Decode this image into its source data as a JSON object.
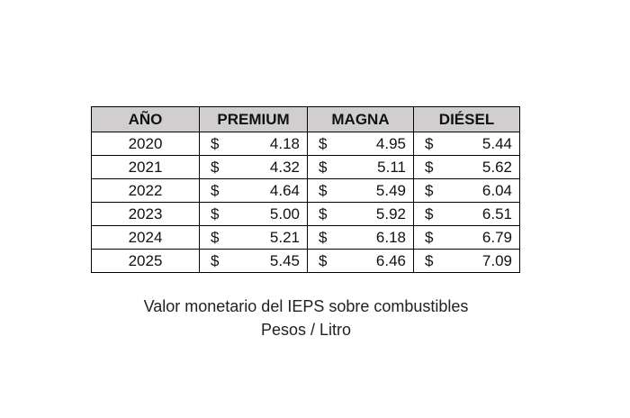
{
  "chart_data": {
    "type": "table",
    "columns": [
      "AÑO",
      "PREMIUM",
      "MAGNA",
      "DIÉSEL"
    ],
    "currency_symbol": "$",
    "rows": [
      {
        "year": "2020",
        "premium": "4.18",
        "magna": "4.95",
        "diesel": "5.44"
      },
      {
        "year": "2021",
        "premium": "4.32",
        "magna": "5.11",
        "diesel": "5.62"
      },
      {
        "year": "2022",
        "premium": "4.64",
        "magna": "5.49",
        "diesel": "6.04"
      },
      {
        "year": "2023",
        "premium": "5.00",
        "magna": "5.92",
        "diesel": "6.51"
      },
      {
        "year": "2024",
        "premium": "5.21",
        "magna": "6.18",
        "diesel": "6.79"
      },
      {
        "year": "2025",
        "premium": "5.45",
        "magna": "6.46",
        "diesel": "7.09"
      }
    ],
    "caption_line1": "Valor monetario del IEPS sobre combustibles",
    "caption_line2": "Pesos /  Litro",
    "header_color": "#d0cece",
    "border_color": "#000000"
  }
}
